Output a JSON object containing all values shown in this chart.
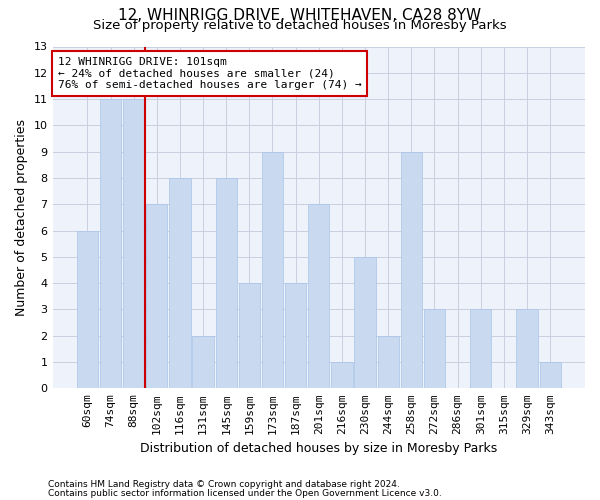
{
  "title": "12, WHINRIGG DRIVE, WHITEHAVEN, CA28 8YW",
  "subtitle": "Size of property relative to detached houses in Moresby Parks",
  "xlabel": "Distribution of detached houses by size in Moresby Parks",
  "ylabel": "Number of detached properties",
  "categories": [
    "60sqm",
    "74sqm",
    "88sqm",
    "102sqm",
    "116sqm",
    "131sqm",
    "145sqm",
    "159sqm",
    "173sqm",
    "187sqm",
    "201sqm",
    "216sqm",
    "230sqm",
    "244sqm",
    "258sqm",
    "272sqm",
    "286sqm",
    "301sqm",
    "315sqm",
    "329sqm",
    "343sqm"
  ],
  "values": [
    6,
    11,
    11,
    7,
    8,
    2,
    8,
    4,
    9,
    4,
    7,
    1,
    5,
    2,
    9,
    3,
    0,
    3,
    0,
    3,
    1
  ],
  "bar_color": "#c9d9f0",
  "bar_edgecolor": "#a8c4e8",
  "vline_x_idx": 2.5,
  "vline_color": "#cc0000",
  "annotation_line1": "12 WHINRIGG DRIVE: 101sqm",
  "annotation_line2": "← 24% of detached houses are smaller (24)",
  "annotation_line3": "76% of semi-detached houses are larger (74) →",
  "annotation_box_facecolor": "#ffffff",
  "annotation_box_edgecolor": "#cc0000",
  "ylim": [
    0,
    13
  ],
  "yticks": [
    0,
    1,
    2,
    3,
    4,
    5,
    6,
    7,
    8,
    9,
    10,
    11,
    12,
    13
  ],
  "footer1": "Contains HM Land Registry data © Crown copyright and database right 2024.",
  "footer2": "Contains public sector information licensed under the Open Government Licence v3.0.",
  "title_fontsize": 11,
  "subtitle_fontsize": 9.5,
  "xlabel_fontsize": 9,
  "ylabel_fontsize": 9,
  "tick_fontsize": 8,
  "annotation_fontsize": 8,
  "footer_fontsize": 6.5,
  "bg_color": "#ffffff",
  "axes_bg_color": "#eef2fa",
  "grid_color": "#c8cfe0"
}
